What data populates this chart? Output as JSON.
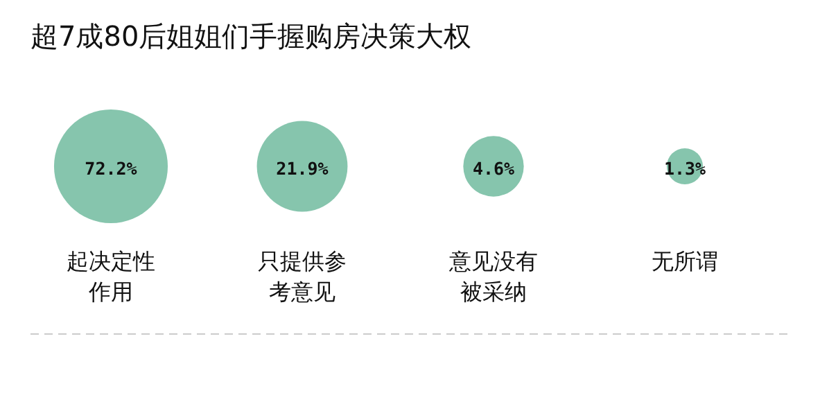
{
  "chart_data": {
    "type": "other",
    "title": "超7成80后姐姐们手握购房决策大权",
    "categories": [
      "起决定性作用",
      "只提供参考意见",
      "意见没有被采纳",
      "无所谓"
    ],
    "values": [
      72.2,
      21.9,
      4.6,
      1.3
    ],
    "value_labels": [
      "72.2%",
      "21.9%",
      "4.6%",
      "1.3%"
    ],
    "color": "#86c5ad"
  }
}
